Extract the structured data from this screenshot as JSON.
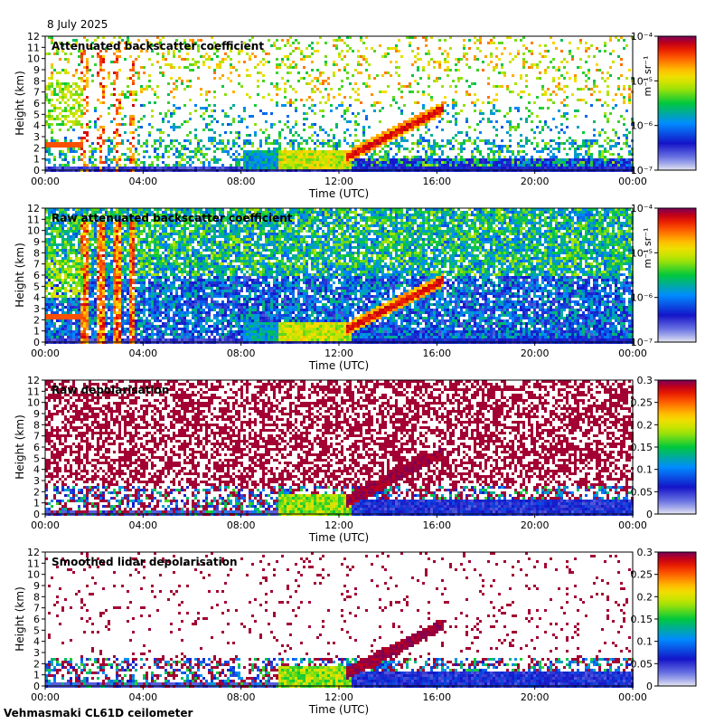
{
  "date_label": "8 July 2025",
  "footer": "Vehmasmaki CL61D ceilometer",
  "chart_data": [
    {
      "type": "heatmap",
      "title": "Attenuated backscatter coefficient",
      "xlabel": "Time (UTC)",
      "ylabel": "Height (km)",
      "xticks": [
        "00:00",
        "04:00",
        "08:00",
        "12:00",
        "16:00",
        "20:00",
        "00:00"
      ],
      "yticks": [
        "0",
        "1",
        "2",
        "3",
        "4",
        "5",
        "6",
        "7",
        "8",
        "9",
        "10",
        "11",
        "12"
      ],
      "ylim": [
        0,
        12
      ],
      "colorbar": {
        "scale": "log",
        "ticks": [
          "10⁻⁷",
          "10⁻⁶",
          "10⁻⁵",
          "10⁻⁴"
        ],
        "unit": "m⁻¹ sr⁻¹"
      },
      "style": "sparse"
    },
    {
      "type": "heatmap",
      "title": "Raw attenuated backscatter coefficient",
      "xlabel": "Time (UTC)",
      "ylabel": "Height (km)",
      "xticks": [
        "00:00",
        "04:00",
        "08:00",
        "12:00",
        "16:00",
        "20:00",
        "00:00"
      ],
      "yticks": [
        "0",
        "1",
        "2",
        "3",
        "4",
        "5",
        "6",
        "7",
        "8",
        "9",
        "10",
        "11",
        "12"
      ],
      "ylim": [
        0,
        12
      ],
      "colorbar": {
        "scale": "log",
        "ticks": [
          "10⁻⁷",
          "10⁻⁶",
          "10⁻⁵",
          "10⁻⁴"
        ],
        "unit": "m⁻¹ sr⁻¹"
      },
      "style": "dense"
    },
    {
      "type": "heatmap",
      "title": "Raw depolarisation",
      "xlabel": "Time (UTC)",
      "ylabel": "Height (km)",
      "xticks": [
        "00:00",
        "04:00",
        "08:00",
        "12:00",
        "16:00",
        "20:00",
        "00:00"
      ],
      "yticks": [
        "0",
        "1",
        "2",
        "3",
        "4",
        "5",
        "6",
        "7",
        "8",
        "9",
        "10",
        "11",
        "12"
      ],
      "ylim": [
        0,
        12
      ],
      "colorbar": {
        "scale": "linear",
        "ticks": [
          "0",
          "0.05",
          "0.1",
          "0.15",
          "0.2",
          "0.25",
          "0.3"
        ],
        "unit": ""
      },
      "style": "depol_raw"
    },
    {
      "type": "heatmap",
      "title": "Smoothed lidar depolarisation",
      "xlabel": "Time (UTC)",
      "ylabel": "Height (km)",
      "xticks": [
        "00:00",
        "04:00",
        "08:00",
        "12:00",
        "16:00",
        "20:00",
        "00:00"
      ],
      "yticks": [
        "0",
        "1",
        "2",
        "3",
        "4",
        "5",
        "6",
        "7",
        "8",
        "9",
        "10",
        "11",
        "12"
      ],
      "ylim": [
        0,
        12
      ],
      "colorbar": {
        "scale": "linear",
        "ticks": [
          "0",
          "0.05",
          "0.1",
          "0.15",
          "0.2",
          "0.25",
          "0.3"
        ],
        "unit": ""
      },
      "style": "depol_smooth"
    }
  ]
}
